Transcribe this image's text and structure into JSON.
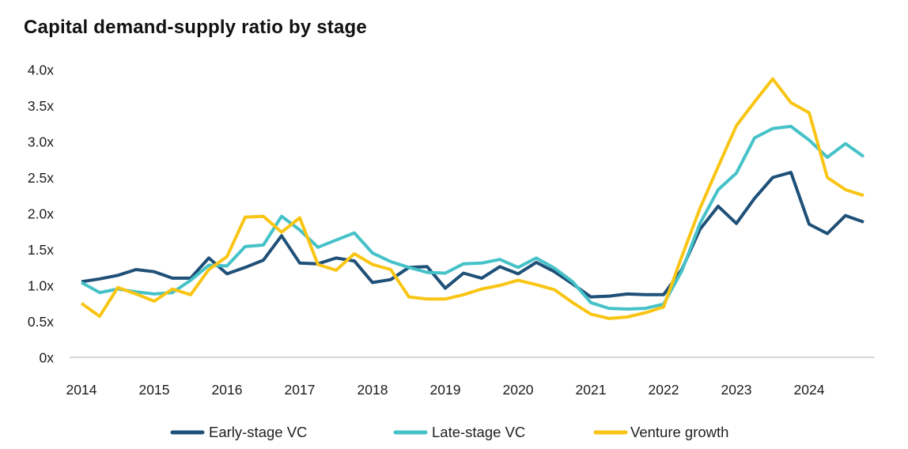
{
  "title": "Capital demand-supply ratio by stage",
  "colors": {
    "early_stage": "#1F5078",
    "late_stage": "#45C2C8",
    "venture_growth": "#F9C514",
    "axis_line": "#D9D9D9",
    "title_text": "#111111",
    "tick_text": "#1C1C1C"
  },
  "chart_data": {
    "type": "line",
    "title": "Capital demand-supply ratio by stage",
    "xlabel": "",
    "ylabel": "",
    "x_frequency": "quarterly",
    "x_range": "2014Q1 to 2024Q4",
    "ylim": [
      0,
      4.0
    ],
    "grid": false,
    "legend_position": "bottom",
    "y_ticks": [
      {
        "value": 0.0,
        "label": "0x"
      },
      {
        "value": 0.5,
        "label": "0.5x"
      },
      {
        "value": 1.0,
        "label": "1.0x"
      },
      {
        "value": 1.5,
        "label": "1.5x"
      },
      {
        "value": 2.0,
        "label": "2.0x"
      },
      {
        "value": 2.5,
        "label": "2.5x"
      },
      {
        "value": 3.0,
        "label": "3.0x"
      },
      {
        "value": 3.5,
        "label": "3.5x"
      },
      {
        "value": 4.0,
        "label": "4.0x"
      }
    ],
    "x_tick_labels": [
      "2014",
      "2015",
      "2016",
      "2017",
      "2018",
      "2019",
      "2020",
      "2021",
      "2022",
      "2023",
      "2024"
    ],
    "series": [
      {
        "name": "Early-stage VC",
        "color": "#1F5078",
        "values": [
          1.05,
          1.09,
          1.14,
          1.22,
          1.19,
          1.1,
          1.1,
          1.38,
          1.16,
          1.25,
          1.35,
          1.69,
          1.31,
          1.3,
          1.38,
          1.34,
          1.04,
          1.08,
          1.25,
          1.26,
          0.96,
          1.17,
          1.1,
          1.26,
          1.16,
          1.32,
          1.19,
          1.02,
          0.84,
          0.85,
          0.88,
          0.87,
          0.87,
          1.22,
          1.78,
          2.1,
          1.86,
          2.21,
          2.5,
          2.57,
          1.85,
          1.72,
          1.97,
          1.88
        ]
      },
      {
        "name": "Late-stage VC",
        "color": "#45C2C8",
        "values": [
          1.04,
          0.9,
          0.95,
          0.91,
          0.88,
          0.9,
          1.07,
          1.28,
          1.27,
          1.54,
          1.56,
          1.96,
          1.77,
          1.53,
          1.63,
          1.73,
          1.45,
          1.33,
          1.25,
          1.18,
          1.17,
          1.3,
          1.31,
          1.36,
          1.25,
          1.38,
          1.24,
          1.05,
          0.76,
          0.68,
          0.67,
          0.68,
          0.74,
          1.2,
          1.86,
          2.33,
          2.56,
          3.05,
          3.18,
          3.21,
          3.02,
          2.78,
          2.97,
          2.79
        ]
      },
      {
        "name": "Venture growth",
        "color": "#F9C514",
        "values": [
          0.75,
          0.57,
          0.97,
          0.88,
          0.78,
          0.95,
          0.87,
          1.22,
          1.4,
          1.95,
          1.96,
          1.74,
          1.94,
          1.29,
          1.21,
          1.44,
          1.29,
          1.22,
          0.84,
          0.81,
          0.81,
          0.87,
          0.95,
          1.0,
          1.07,
          1.01,
          0.94,
          0.76,
          0.6,
          0.54,
          0.56,
          0.62,
          0.7,
          1.4,
          2.07,
          2.65,
          3.22,
          3.55,
          3.87,
          3.54,
          3.4,
          2.5,
          2.33,
          2.25
        ]
      }
    ]
  }
}
